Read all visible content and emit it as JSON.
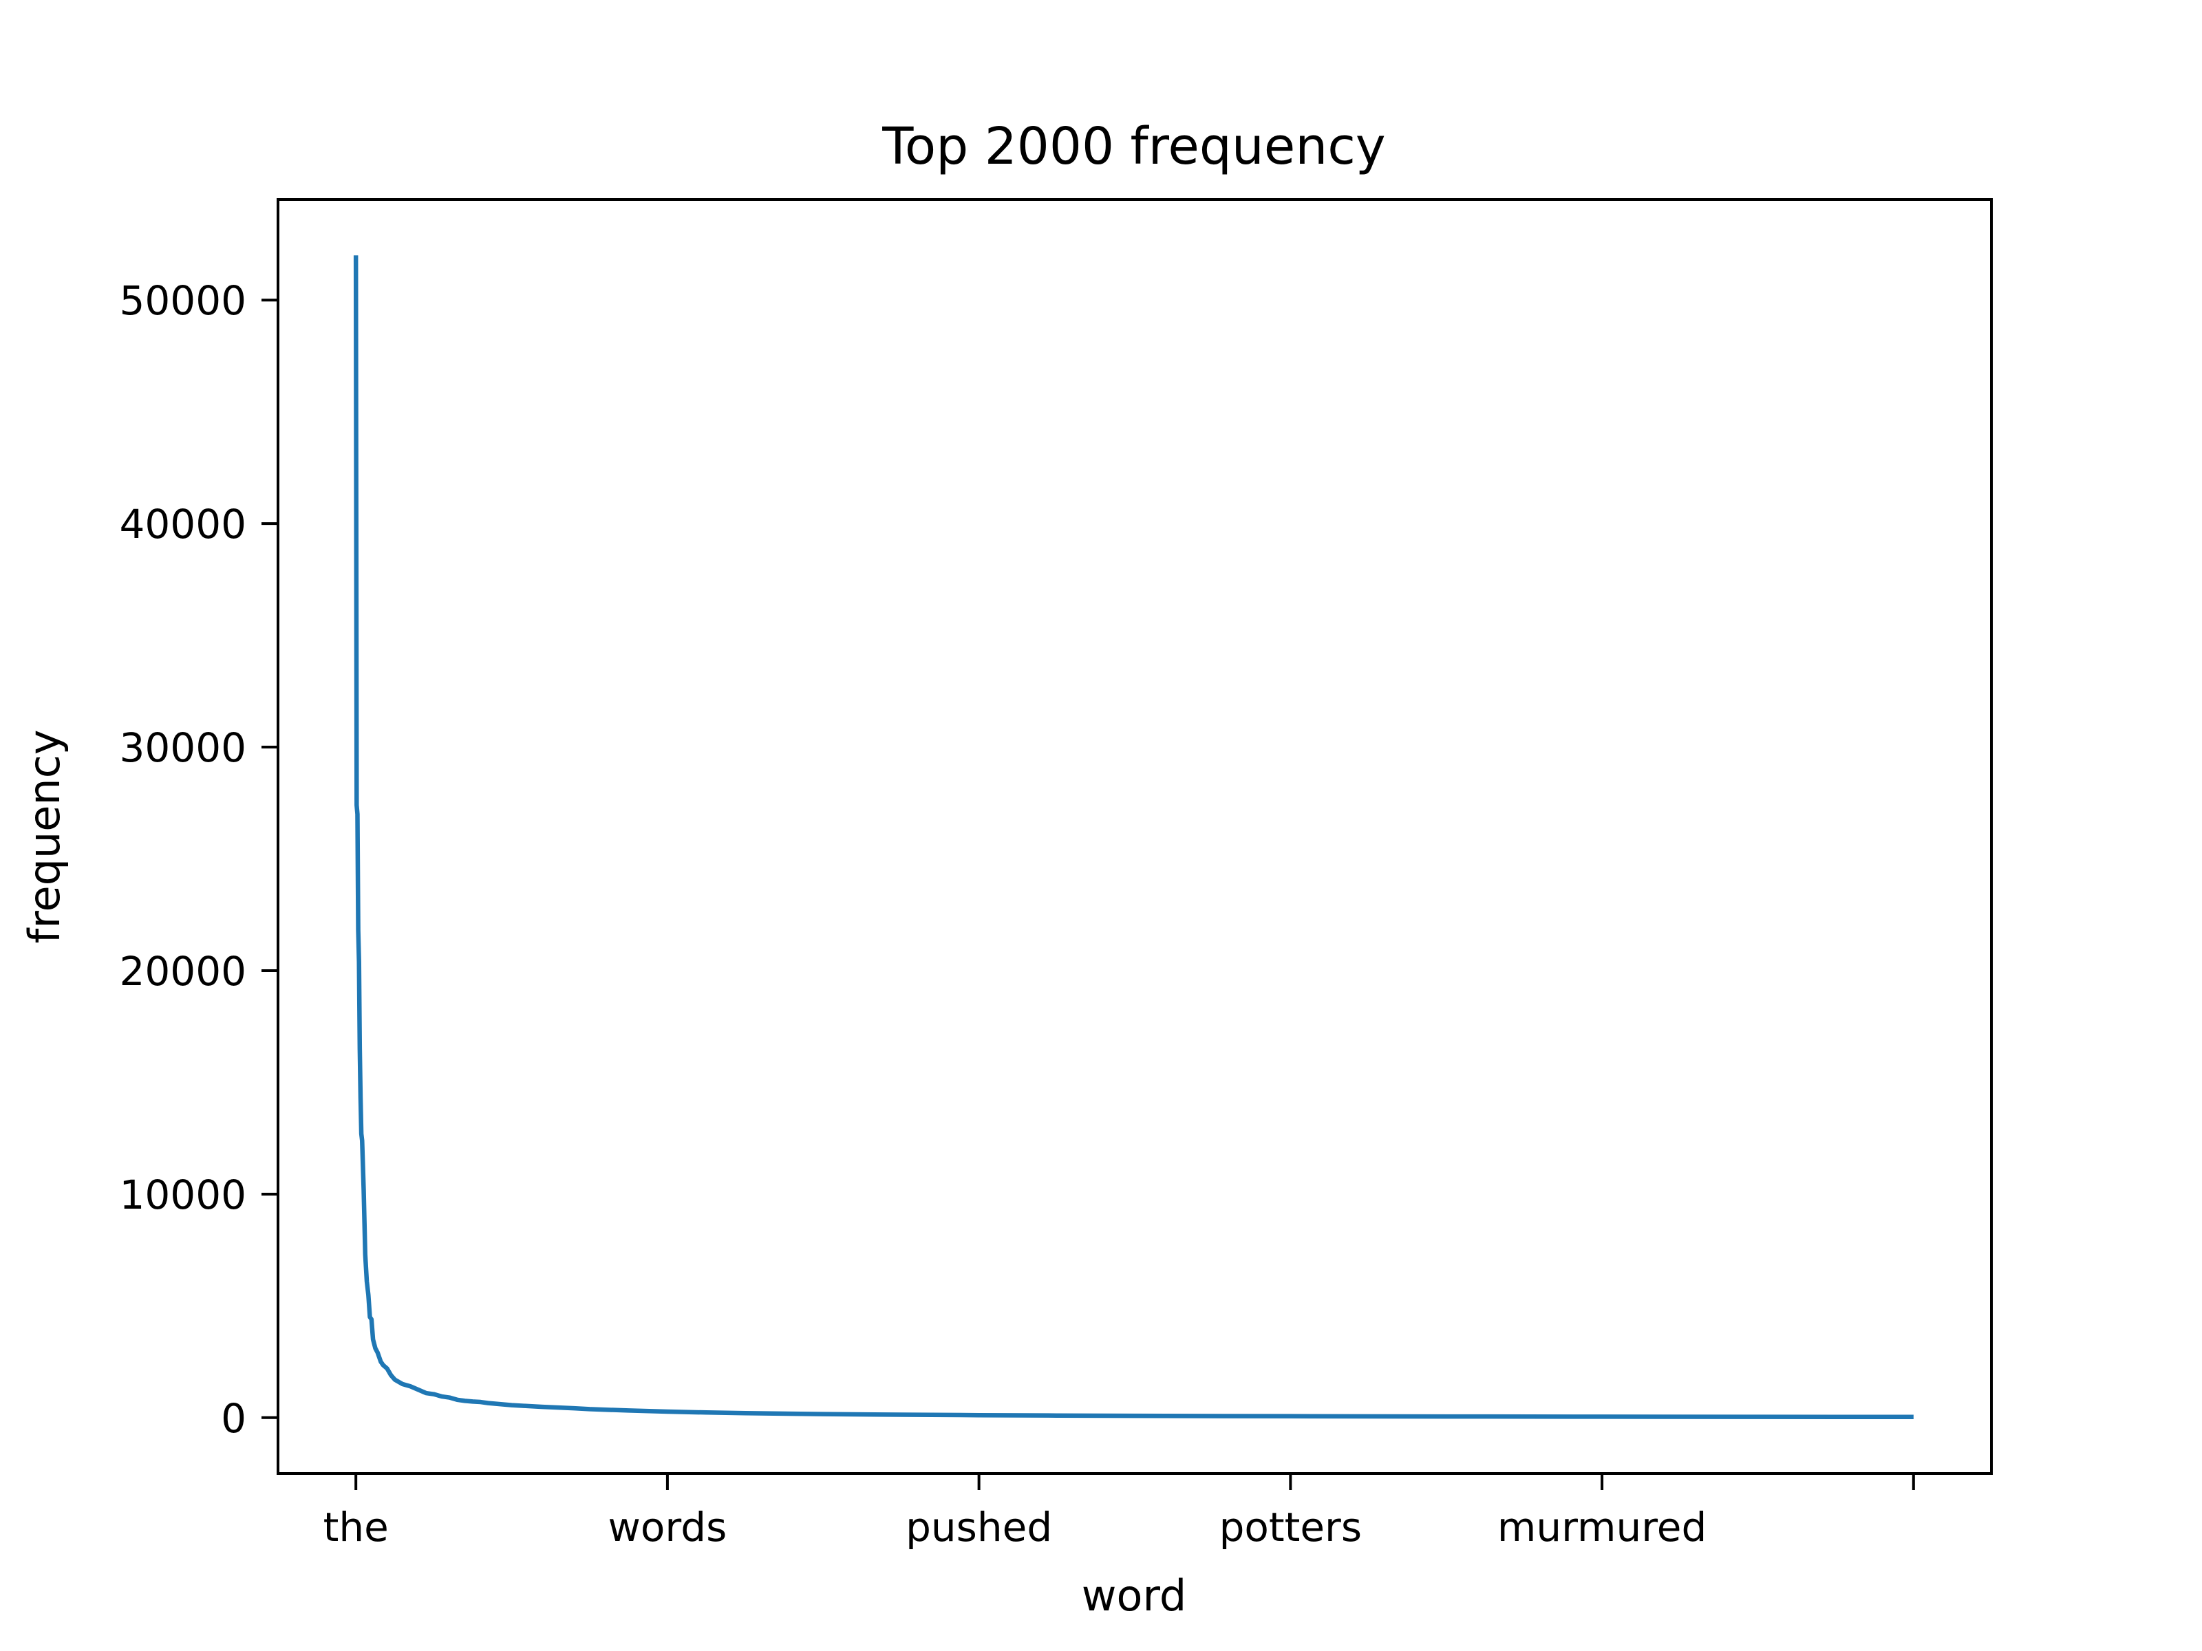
{
  "chart_data": {
    "type": "line",
    "title": "Top 2000 frequency",
    "xlabel": "word",
    "ylabel": "frequency",
    "x_tick_labels": [
      "the",
      "words",
      "pushed",
      "potters",
      "murmured",
      ""
    ],
    "x_tick_positions": [
      0,
      400,
      800,
      1200,
      1600,
      2000
    ],
    "xlim": [
      -100,
      2100
    ],
    "y_ticks": [
      0,
      10000,
      20000,
      30000,
      40000,
      50000
    ],
    "y_tick_labels": [
      "0",
      "10000",
      "20000",
      "30000",
      "40000",
      "50000"
    ],
    "ylim": [
      -2500,
      54500
    ],
    "grid": false,
    "series": [
      {
        "color": "#1f77b4",
        "x": [
          0,
          1,
          2,
          3,
          4,
          5,
          6,
          7,
          8,
          10,
          12,
          14,
          16,
          18,
          20,
          22,
          25,
          28,
          30,
          32,
          35,
          40,
          45,
          50,
          60,
          70,
          80,
          90,
          100,
          110,
          120,
          130,
          140,
          150,
          160,
          170,
          180,
          190,
          200,
          220,
          240,
          260,
          280,
          300,
          350,
          400,
          450,
          500,
          600,
          700,
          800,
          900,
          1000,
          1200,
          1400,
          1600,
          1800,
          2000
        ],
        "y": [
          52000,
          27400,
          27000,
          21800,
          20400,
          16500,
          14300,
          12700,
          12400,
          10200,
          7300,
          6100,
          5500,
          4500,
          4400,
          3500,
          3100,
          2900,
          2700,
          2500,
          2350,
          2200,
          1900,
          1700,
          1500,
          1400,
          1250,
          1100,
          1050,
          950,
          900,
          800,
          750,
          720,
          700,
          650,
          620,
          590,
          560,
          520,
          480,
          450,
          420,
          380,
          320,
          270,
          230,
          200,
          160,
          130,
          110,
          95,
          80,
          65,
          52,
          42,
          35,
          30
        ]
      }
    ]
  }
}
